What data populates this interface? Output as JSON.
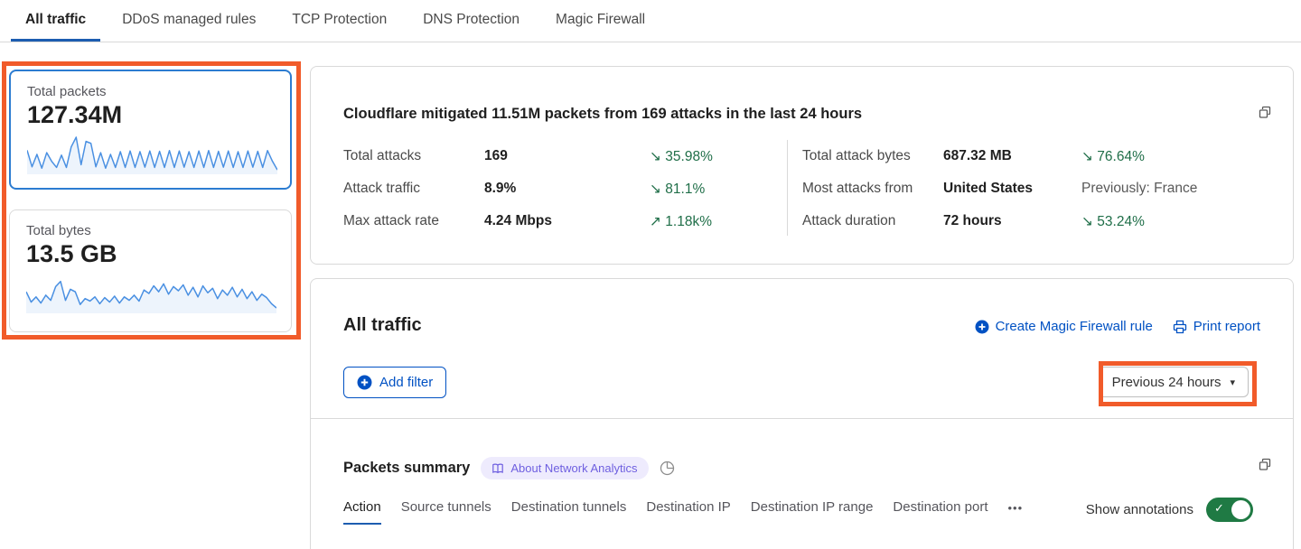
{
  "colors": {
    "accent": "#0051c3",
    "text": "#313131",
    "muted": "#56565c",
    "border": "#d9d9d9",
    "annotation": "#f15b2a",
    "green": "#1f6e48",
    "toggle": "#1f7a44",
    "spark": "#4a90e2",
    "selected": "#2c7cd1",
    "badge-bg": "#eeebfd",
    "badge-text": "#6e5fe0"
  },
  "tabs": [
    {
      "label": "All traffic",
      "active": true
    },
    {
      "label": "DDoS managed rules",
      "active": false
    },
    {
      "label": "TCP Protection",
      "active": false
    },
    {
      "label": "DNS Protection",
      "active": false
    },
    {
      "label": "Magic Firewall",
      "active": false
    }
  ],
  "sidebar": {
    "cards": [
      {
        "title": "Total packets",
        "value": "127.34M",
        "sparkline": [
          62,
          14,
          50,
          10,
          55,
          30,
          12,
          48,
          12,
          72,
          100,
          20,
          88,
          82,
          14,
          55,
          10,
          50,
          12,
          58,
          12,
          60,
          12,
          58,
          13,
          60,
          12,
          59,
          12,
          61,
          12,
          60,
          13,
          58,
          12,
          60,
          12,
          61,
          12,
          59,
          13,
          60,
          12,
          58,
          12,
          60,
          13,
          59,
          12,
          61,
          30,
          5
        ]
      },
      {
        "title": "Total bytes",
        "value": "13.5 GB",
        "sparkline": [
          55,
          25,
          40,
          22,
          45,
          30,
          70,
          85,
          30,
          62,
          55,
          18,
          35,
          28,
          40,
          20,
          38,
          25,
          42,
          22,
          40,
          30,
          45,
          28,
          60,
          50,
          72,
          55,
          78,
          48,
          70,
          58,
          75,
          45,
          68,
          40,
          72,
          52,
          65,
          35,
          60,
          45,
          68,
          40,
          62,
          35,
          55,
          30,
          48,
          38,
          20,
          8
        ]
      }
    ]
  },
  "summary": {
    "title": "Cloudflare mitigated 11.51M packets from 169 attacks in the last 24 hours",
    "left": [
      {
        "label": "Total attacks",
        "value": "169",
        "trend": "↘ 35.98%"
      },
      {
        "label": "Attack traffic",
        "value": "8.9%",
        "trend": "↘ 81.1%"
      },
      {
        "label": "Max attack rate",
        "value": "4.24 Mbps",
        "trend": "↗ 1.18k%"
      }
    ],
    "right": [
      {
        "label": "Total attack bytes",
        "value": "687.32 MB",
        "trend": "↘ 76.64%"
      },
      {
        "label": "Most attacks from",
        "value": "United States",
        "trend": "Previously: France"
      },
      {
        "label": "Attack duration",
        "value": "72 hours",
        "trend": "↘ 53.24%"
      }
    ]
  },
  "all_traffic": {
    "title": "All traffic",
    "create_rule_label": "Create Magic Firewall rule",
    "print_label": "Print report",
    "add_filter_label": "Add filter",
    "time_range_label": "Previous 24 hours",
    "caret_glyph": "▾"
  },
  "packets_summary": {
    "title": "Packets summary",
    "badge_label": "About Network Analytics",
    "subtabs": [
      "Action",
      "Source tunnels",
      "Destination tunnels",
      "Destination IP",
      "Destination IP range",
      "Destination port"
    ],
    "more_label": "•••",
    "show_annotations_label": "Show annotations",
    "toggle_on": true,
    "toggle_check_glyph": "✓"
  }
}
